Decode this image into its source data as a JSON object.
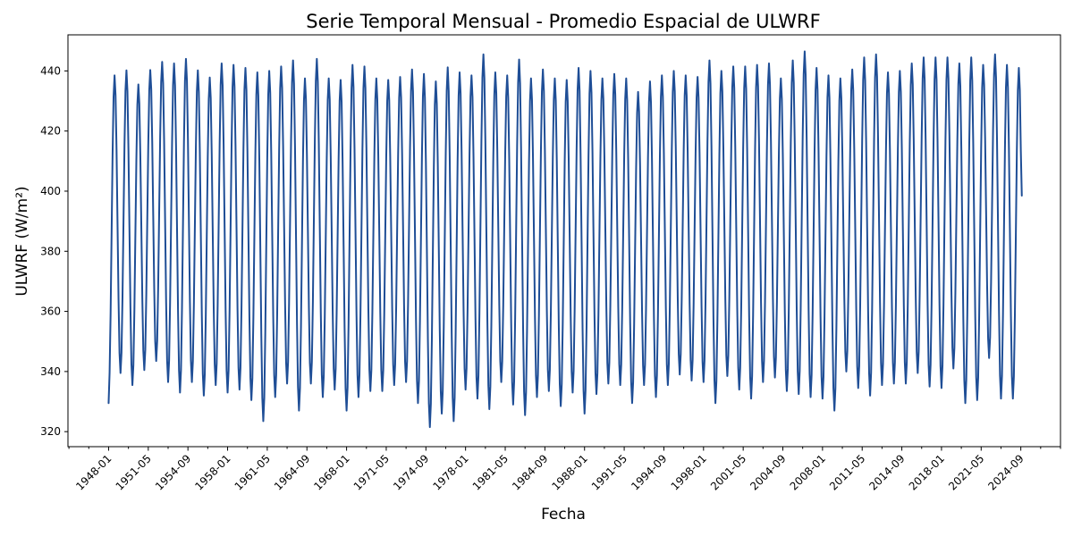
{
  "chart_data": {
    "type": "line",
    "title": "Serie Temporal Mensual - Promedio Espacial de ULWRF",
    "xlabel": "Fecha",
    "ylabel": "ULWRF (W/m²)",
    "x_tick_labels": [
      "1948-01",
      "1951-05",
      "1954-09",
      "1958-01",
      "1961-05",
      "1964-09",
      "1968-01",
      "1971-05",
      "1974-09",
      "1978-01",
      "1981-05",
      "1984-09",
      "1988-01",
      "1991-05",
      "1994-09",
      "1998-01",
      "2001-05",
      "2004-09",
      "2008-01",
      "2011-05",
      "2014-09",
      "2018-01",
      "2021-05",
      "2024-09"
    ],
    "y_ticks": [
      320,
      340,
      360,
      380,
      400,
      420,
      440
    ],
    "xlim": [
      "1944-08",
      "2028-01"
    ],
    "ylim": [
      315,
      452
    ],
    "grid": false,
    "series": [
      {
        "color": "#1f4e96",
        "start": "1948-01",
        "end": "2024-10",
        "annual_peaks": [
          438.5,
          440.2,
          435.5,
          440.3,
          443.0,
          442.5,
          444.0,
          440.2,
          437.8,
          442.5,
          442.0,
          441.0,
          439.5,
          440.0,
          441.5,
          443.5,
          437.5,
          444.0,
          437.5,
          437.0,
          442.0,
          441.5,
          437.5,
          437.0,
          438.0,
          440.5,
          439.0,
          436.5,
          441.2,
          439.5,
          438.5,
          445.5,
          439.5,
          438.5,
          443.8,
          437.5,
          440.5,
          437.5,
          437.0,
          441.0,
          440.0,
          437.5,
          439.0,
          437.5,
          433.0,
          436.5,
          438.5,
          440.0,
          438.5,
          438.0,
          443.5,
          440.0,
          441.5,
          441.5,
          442.0,
          442.5,
          437.5,
          443.5,
          446.5,
          441.0,
          438.5,
          437.5,
          440.5,
          444.5,
          445.5,
          439.5,
          440.0,
          442.5,
          444.5,
          444.5,
          444.5,
          442.5,
          444.5,
          442.0,
          445.5,
          442.0,
          441.0
        ],
        "annual_troughs": [
          332.5,
          339.5,
          335.5,
          340.5,
          343.5,
          336.5,
          333.0,
          336.5,
          332.0,
          335.5,
          333.0,
          334.0,
          330.5,
          323.5,
          331.5,
          336.0,
          327.0,
          336.0,
          331.5,
          334.0,
          327.0,
          331.5,
          333.5,
          333.5,
          335.5,
          336.5,
          329.5,
          321.5,
          326.0,
          323.5,
          334.0,
          331.0,
          327.5,
          336.5,
          329.0,
          325.5,
          331.5,
          333.5,
          328.5,
          333.0,
          326.0,
          332.5,
          336.0,
          335.5,
          329.5,
          335.5,
          331.5,
          335.5,
          339.0,
          337.0,
          336.5,
          329.5,
          338.5,
          334.0,
          331.0,
          336.5,
          338.0,
          333.5,
          332.5,
          331.5,
          331.0,
          327.0,
          340.0,
          334.5,
          332.0,
          335.5,
          336.0,
          336.0,
          339.5,
          335.0,
          334.5,
          341.0,
          329.5,
          330.5,
          344.5,
          331.0
        ],
        "first_value": 329.5,
        "last_value": 398.5
      }
    ]
  }
}
